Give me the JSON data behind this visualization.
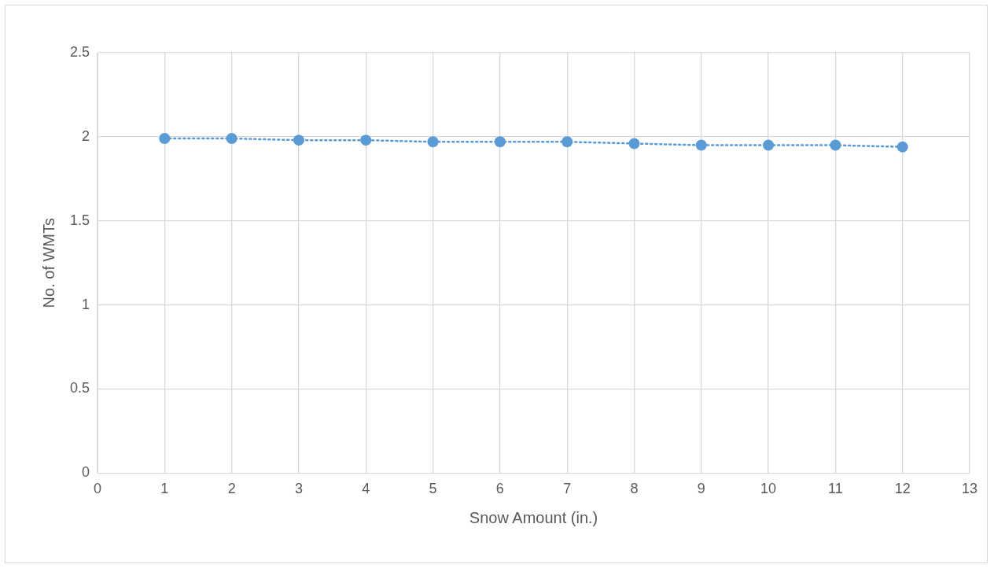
{
  "chart_data": {
    "type": "line",
    "xlabel": "Snow Amount (in.)",
    "ylabel": "No. of WMTs",
    "x": [
      1,
      2,
      3,
      4,
      5,
      6,
      7,
      8,
      9,
      10,
      11,
      12
    ],
    "series": [
      {
        "color": "#5b9bd5",
        "values": [
          1.99,
          1.99,
          1.98,
          1.98,
          1.97,
          1.97,
          1.97,
          1.96,
          1.95,
          1.95,
          1.95,
          1.94
        ]
      }
    ],
    "xlim": [
      0,
      13
    ],
    "xticks": [
      0,
      1,
      2,
      3,
      4,
      5,
      6,
      7,
      8,
      9,
      10,
      11,
      12,
      13
    ],
    "ylim": [
      0,
      2.5
    ],
    "yticks": [
      0,
      0.5,
      1,
      1.5,
      2,
      2.5
    ],
    "grid": true,
    "legend": false,
    "marker": "circle",
    "line_style": "dotted"
  }
}
